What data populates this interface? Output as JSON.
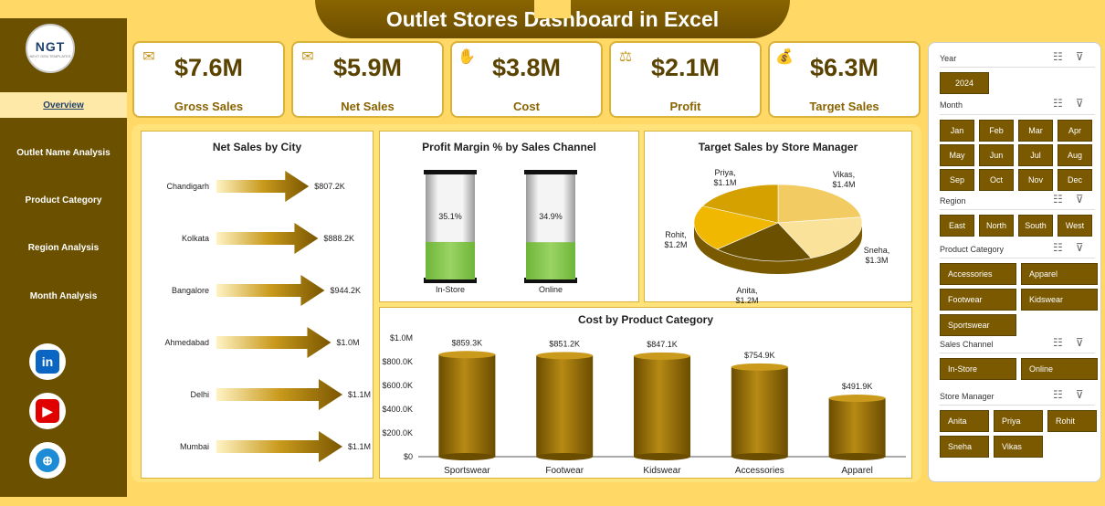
{
  "title": "Outlet Stores Dashboard in Excel",
  "logo": {
    "main": "NGT",
    "sub": "NEXT GEN TEMPLATES"
  },
  "nav": [
    {
      "label": "Overview",
      "active": true
    },
    {
      "label": "Outlet Name Analysis"
    },
    {
      "label": "Product Category"
    },
    {
      "label": "Region Analysis"
    },
    {
      "label": "Month Analysis"
    }
  ],
  "social": [
    {
      "icon": "linkedin-icon",
      "glyph": "in",
      "color": "#0a66c2"
    },
    {
      "icon": "youtube-icon",
      "glyph": "▶",
      "color": "#e00000"
    },
    {
      "icon": "globe-icon",
      "glyph": "⊕",
      "color": "#1d8bd6"
    }
  ],
  "kpis": [
    {
      "value": "$7.6M",
      "label": "Gross Sales",
      "icon": "money-stack-icon",
      "glyph": "✉"
    },
    {
      "value": "$5.9M",
      "label": "Net Sales",
      "icon": "cash-icon",
      "glyph": "✉"
    },
    {
      "value": "$3.8M",
      "label": "Cost",
      "icon": "cost-hand-icon",
      "glyph": "✋"
    },
    {
      "value": "$2.1M",
      "label": "Profit",
      "icon": "profit-icon",
      "glyph": "⚖"
    },
    {
      "value": "$6.3M",
      "label": "Target Sales",
      "icon": "money-bag-icon",
      "glyph": "💰"
    }
  ],
  "charts": {
    "city": {
      "title": "Net Sales by City",
      "chart_data": {
        "type": "bar",
        "categories": [
          "Chandigarh",
          "Kolkata",
          "Bangalore",
          "Ahmedabad",
          "Delhi",
          "Mumbai"
        ],
        "values": [
          807.2,
          888.2,
          944.2,
          1000,
          1100,
          1100
        ],
        "labels": [
          "$807.2K",
          "$888.2K",
          "$944.2K",
          "$1.0M",
          "$1.1M",
          "$1.1M"
        ]
      }
    },
    "margin": {
      "title": "Profit Margin % by Sales Channel",
      "chart_data": {
        "type": "bar",
        "categories": [
          "In-Store",
          "Online"
        ],
        "values": [
          35.1,
          34.9
        ],
        "labels": [
          "35.1%",
          "34.9%"
        ]
      }
    },
    "manager": {
      "title": "Target Sales by Store Manager",
      "chart_data": {
        "type": "pie",
        "categories": [
          "Vikas",
          "Sneha",
          "Anita",
          "Rohit",
          "Priya"
        ],
        "values": [
          1.4,
          1.3,
          1.2,
          1.2,
          1.1
        ],
        "labels": [
          "$1.4M",
          "$1.3M",
          "$1.2M",
          "$1.2M",
          "$1.1M"
        ]
      }
    },
    "category": {
      "title": "Cost by Product Category",
      "chart_data": {
        "type": "bar",
        "categories": [
          "Sportswear",
          "Footwear",
          "Kidswear",
          "Accessories",
          "Apparel"
        ],
        "values": [
          859.3,
          851.2,
          847.1,
          754.9,
          491.9
        ],
        "labels": [
          "$859.3K",
          "$851.2K",
          "$847.1K",
          "$754.9K",
          "$491.9K"
        ],
        "yticks": [
          "$0",
          "$200.0K",
          "$400.0K",
          "$600.0K",
          "$800.0K",
          "$1.0M"
        ],
        "ylim": [
          0,
          1000
        ]
      }
    }
  },
  "slicers": {
    "year": {
      "title": "Year",
      "items": [
        "2024"
      ]
    },
    "month": {
      "title": "Month",
      "items": [
        "Jan",
        "Feb",
        "Mar",
        "Apr",
        "May",
        "Jun",
        "Jul",
        "Aug",
        "Sep",
        "Oct",
        "Nov",
        "Dec"
      ]
    },
    "region": {
      "title": "Region",
      "items": [
        "East",
        "North",
        "South",
        "West"
      ]
    },
    "product": {
      "title": "Product Category",
      "items": [
        "Accessories",
        "Apparel",
        "Footwear",
        "Kidswear",
        "Sportswear"
      ]
    },
    "channel": {
      "title": "Sales Channel",
      "items": [
        "In-Store",
        "Online"
      ]
    },
    "manager": {
      "title": "Store Manager",
      "items": [
        "Anita",
        "Priya",
        "Rohit",
        "Sneha",
        "Vikas"
      ]
    }
  }
}
